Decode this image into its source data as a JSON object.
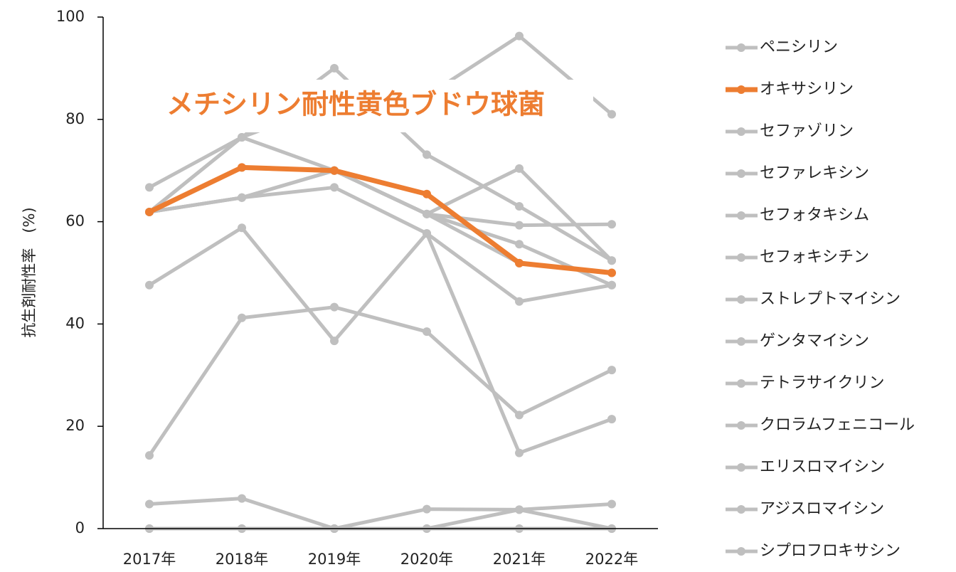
{
  "chart_data": {
    "type": "line",
    "title": "メチシリン耐性黄色ブドウ球菌",
    "y_label": "抗生剤耐性率　(%)",
    "categories": [
      "2017年",
      "2018年",
      "2019年",
      "2020年",
      "2021年",
      "2022年"
    ],
    "ylim": [
      0,
      100
    ],
    "yticks": [
      0,
      20,
      40,
      60,
      80,
      100
    ],
    "legend": "right",
    "series": [
      {
        "name": "ペニシリン",
        "color": "#bfbfbf",
        "values": [
          66.7,
          76.5,
          90.0,
          73.1,
          63.0,
          52.4
        ]
      },
      {
        "name": "オキサシリン",
        "color": "#ed7d31",
        "values": [
          61.9,
          70.6,
          70.0,
          65.4,
          51.9,
          50.0
        ]
      },
      {
        "name": "セファゾリン",
        "color": "#bfbfbf",
        "values": [
          61.9,
          70.6,
          70.0,
          61.5,
          51.9,
          50.0
        ]
      },
      {
        "name": "セファレキシン",
        "color": "#bfbfbf",
        "values": [
          61.9,
          76.5,
          70.0,
          61.5,
          59.3,
          59.5
        ]
      },
      {
        "name": "セフォタキシム",
        "color": "#bfbfbf",
        "values": [
          61.9,
          64.7,
          70.0,
          61.5,
          55.6,
          47.6
        ]
      },
      {
        "name": "セフォキシチン",
        "color": "#bfbfbf",
        "values": [
          61.9,
          64.7,
          66.7,
          57.7,
          44.4,
          47.6
        ]
      },
      {
        "name": "ストレプトマイシン",
        "color": "#bfbfbf",
        "values": [
          47.6,
          58.8,
          36.7,
          57.7,
          14.8,
          21.4
        ]
      },
      {
        "name": "ゲンタマイシン",
        "color": "#bfbfbf",
        "values": [
          14.3,
          41.2,
          43.3,
          38.5,
          22.2,
          31.0
        ]
      },
      {
        "name": "テトラサイクリン",
        "color": "#bfbfbf",
        "values": [
          61.9,
          76.5,
          83.3,
          84.6,
          96.3,
          81.0
        ]
      },
      {
        "name": "クロラムフェニコール",
        "color": "#bfbfbf",
        "values": [
          61.9,
          64.7,
          70.0,
          61.5,
          70.4,
          52.4
        ]
      },
      {
        "name": "エリスロマイシン",
        "color": "#bfbfbf",
        "values": [
          4.8,
          5.9,
          0,
          3.8,
          3.7,
          4.8
        ]
      },
      {
        "name": "アジスロマイシン",
        "color": "#bfbfbf",
        "values": [
          0,
          0,
          0,
          0,
          0,
          0
        ]
      },
      {
        "name": "シプロフロキサシン",
        "color": "#bfbfbf",
        "values": [
          0,
          0,
          0,
          0,
          3.7,
          0
        ]
      }
    ]
  }
}
